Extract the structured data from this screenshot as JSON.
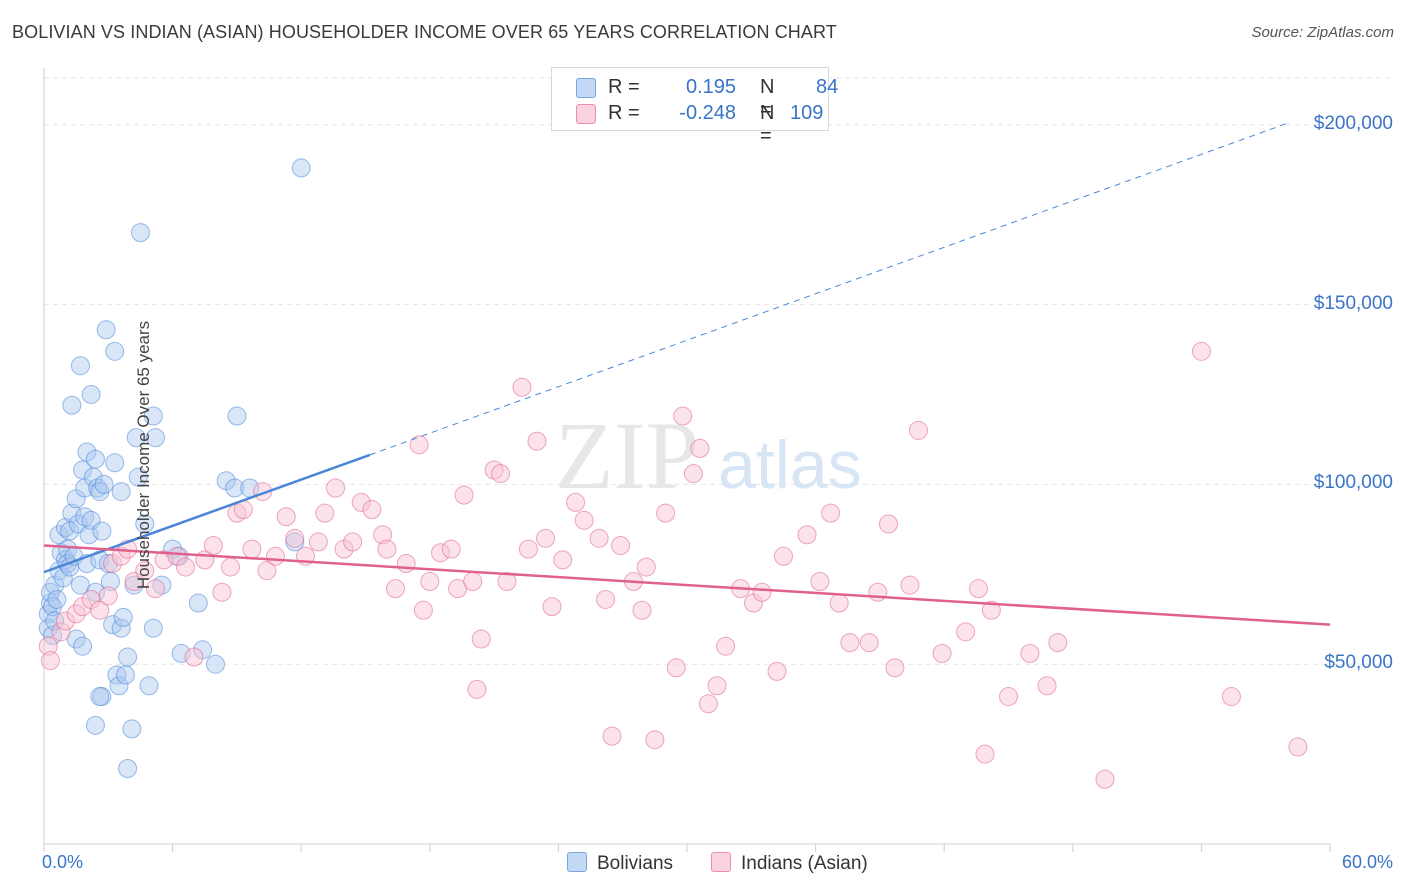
{
  "title": "BOLIVIAN VS INDIAN (ASIAN) HOUSEHOLDER INCOME OVER 65 YEARS CORRELATION CHART",
  "source": "Source: ZipAtlas.com",
  "watermark": {
    "zip": "ZIP",
    "atlas": "atlas"
  },
  "legend": {
    "r_label": "R =",
    "n_label": "N =",
    "entries": [
      {
        "name": "Bolivians",
        "r": "0.195",
        "n": "84",
        "color": "#a8c8f0"
      },
      {
        "name": "Indians (Asian)",
        "r": "-0.248",
        "n": "109",
        "color": "#f8c0d2"
      }
    ]
  },
  "chart_data": {
    "type": "scatter",
    "xlabel": "",
    "ylabel": "Householder Income Over 65 years",
    "x_unit": "%",
    "xlim": [
      0,
      60
    ],
    "ylim": [
      0,
      213000
    ],
    "x_tick_labels": [
      "0.0%",
      "60.0%"
    ],
    "y_ticks": [
      50000,
      100000,
      150000,
      200000
    ],
    "y_tick_labels": [
      "$50,000",
      "$100,000",
      "$150,000",
      "$200,000"
    ],
    "grid": true,
    "series": [
      {
        "name": "Bolivians",
        "color": "#4a86d8",
        "fill": "#a8c8f0",
        "trend": {
          "x": [
            0,
            15.2
          ],
          "y": [
            75600,
            108200
          ],
          "dashed_extension_to": [
            58,
            200400
          ]
        },
        "points": [
          [
            0.2,
            64000
          ],
          [
            0.2,
            60000
          ],
          [
            0.3,
            67000
          ],
          [
            0.3,
            70000
          ],
          [
            0.4,
            66000
          ],
          [
            0.4,
            58000
          ],
          [
            0.5,
            72000
          ],
          [
            0.5,
            62000
          ],
          [
            0.6,
            68000
          ],
          [
            0.7,
            86000
          ],
          [
            0.7,
            76000
          ],
          [
            0.8,
            81000
          ],
          [
            0.9,
            74000
          ],
          [
            1.0,
            88000
          ],
          [
            1.0,
            79000
          ],
          [
            1.1,
            82000
          ],
          [
            1.1,
            78000
          ],
          [
            1.2,
            87000
          ],
          [
            1.2,
            77000
          ],
          [
            1.3,
            122000
          ],
          [
            1.3,
            92000
          ],
          [
            1.4,
            80000
          ],
          [
            1.5,
            96000
          ],
          [
            1.5,
            57000
          ],
          [
            1.6,
            89000
          ],
          [
            1.7,
            133000
          ],
          [
            1.7,
            72000
          ],
          [
            1.8,
            104000
          ],
          [
            1.9,
            99000
          ],
          [
            1.9,
            91000
          ],
          [
            2.0,
            109000
          ],
          [
            2.0,
            78000
          ],
          [
            2.1,
            86000
          ],
          [
            2.2,
            125000
          ],
          [
            2.2,
            90000
          ],
          [
            2.3,
            102000
          ],
          [
            2.4,
            107000
          ],
          [
            2.4,
            70000
          ],
          [
            2.5,
            99000
          ],
          [
            2.6,
            98000
          ],
          [
            2.6,
            79000
          ],
          [
            2.7,
            87000
          ],
          [
            2.8,
            100000
          ],
          [
            2.9,
            143000
          ],
          [
            3.0,
            78000
          ],
          [
            3.1,
            73000
          ],
          [
            3.2,
            61000
          ],
          [
            3.3,
            137000
          ],
          [
            3.3,
            106000
          ],
          [
            3.4,
            47000
          ],
          [
            3.5,
            44000
          ],
          [
            3.6,
            60000
          ],
          [
            3.6,
            98000
          ],
          [
            3.7,
            63000
          ],
          [
            3.8,
            47000
          ],
          [
            3.9,
            52000
          ],
          [
            4.1,
            32000
          ],
          [
            4.2,
            72000
          ],
          [
            4.3,
            113000
          ],
          [
            4.4,
            102000
          ],
          [
            4.5,
            170000
          ],
          [
            4.7,
            89000
          ],
          [
            4.9,
            44000
          ],
          [
            5.1,
            119000
          ],
          [
            5.1,
            60000
          ],
          [
            5.2,
            113000
          ],
          [
            5.5,
            72000
          ],
          [
            6.0,
            82000
          ],
          [
            6.3,
            80000
          ],
          [
            6.4,
            53000
          ],
          [
            7.2,
            67000
          ],
          [
            7.4,
            54000
          ],
          [
            8.0,
            50000
          ],
          [
            8.5,
            101000
          ],
          [
            8.9,
            99000
          ],
          [
            9.0,
            119000
          ],
          [
            9.6,
            99000
          ],
          [
            11.7,
            84000
          ],
          [
            12.0,
            188000
          ],
          [
            2.4,
            33000
          ],
          [
            3.9,
            21000
          ],
          [
            2.7,
            41000
          ],
          [
            2.6,
            41000
          ],
          [
            1.8,
            55000
          ]
        ]
      },
      {
        "name": "Indians (Asian)",
        "color": "#e0608e",
        "fill": "#f8c0d2",
        "trend": {
          "x": [
            0,
            60
          ],
          "y": [
            83000,
            61000
          ]
        },
        "points": [
          [
            0.2,
            55000
          ],
          [
            0.3,
            51000
          ],
          [
            0.8,
            59000
          ],
          [
            1.0,
            62000
          ],
          [
            1.5,
            64000
          ],
          [
            1.8,
            66000
          ],
          [
            2.2,
            68000
          ],
          [
            2.6,
            65000
          ],
          [
            3.0,
            69000
          ],
          [
            3.2,
            78000
          ],
          [
            3.6,
            80000
          ],
          [
            3.9,
            82000
          ],
          [
            4.2,
            73000
          ],
          [
            4.7,
            76000
          ],
          [
            5.2,
            71000
          ],
          [
            5.6,
            79000
          ],
          [
            6.2,
            80000
          ],
          [
            6.6,
            77000
          ],
          [
            7.0,
            52000
          ],
          [
            7.5,
            79000
          ],
          [
            7.9,
            83000
          ],
          [
            8.3,
            70000
          ],
          [
            8.7,
            77000
          ],
          [
            9.0,
            92000
          ],
          [
            9.3,
            93000
          ],
          [
            9.7,
            82000
          ],
          [
            10.2,
            98000
          ],
          [
            10.4,
            76000
          ],
          [
            10.8,
            80000
          ],
          [
            11.3,
            91000
          ],
          [
            11.7,
            85000
          ],
          [
            12.2,
            80000
          ],
          [
            12.8,
            84000
          ],
          [
            13.1,
            92000
          ],
          [
            13.6,
            99000
          ],
          [
            14.0,
            82000
          ],
          [
            14.4,
            84000
          ],
          [
            14.8,
            95000
          ],
          [
            15.3,
            93000
          ],
          [
            15.8,
            86000
          ],
          [
            16.0,
            82000
          ],
          [
            16.4,
            71000
          ],
          [
            16.9,
            78000
          ],
          [
            17.5,
            111000
          ],
          [
            17.7,
            65000
          ],
          [
            18.0,
            73000
          ],
          [
            18.5,
            81000
          ],
          [
            19.0,
            82000
          ],
          [
            19.3,
            71000
          ],
          [
            19.6,
            97000
          ],
          [
            20.0,
            73000
          ],
          [
            20.2,
            43000
          ],
          [
            20.4,
            57000
          ],
          [
            21.0,
            104000
          ],
          [
            21.3,
            103000
          ],
          [
            21.6,
            73000
          ],
          [
            22.3,
            127000
          ],
          [
            22.6,
            82000
          ],
          [
            23.0,
            112000
          ],
          [
            23.4,
            85000
          ],
          [
            23.7,
            66000
          ],
          [
            24.2,
            79000
          ],
          [
            24.8,
            95000
          ],
          [
            25.2,
            90000
          ],
          [
            25.9,
            85000
          ],
          [
            26.2,
            68000
          ],
          [
            26.5,
            30000
          ],
          [
            26.9,
            83000
          ],
          [
            27.5,
            73000
          ],
          [
            27.9,
            65000
          ],
          [
            28.1,
            77000
          ],
          [
            28.5,
            29000
          ],
          [
            29.0,
            92000
          ],
          [
            29.5,
            49000
          ],
          [
            29.8,
            119000
          ],
          [
            30.3,
            103000
          ],
          [
            30.6,
            110000
          ],
          [
            31.0,
            39000
          ],
          [
            31.4,
            44000
          ],
          [
            31.8,
            55000
          ],
          [
            32.5,
            71000
          ],
          [
            33.1,
            67000
          ],
          [
            33.5,
            70000
          ],
          [
            34.2,
            48000
          ],
          [
            34.5,
            80000
          ],
          [
            35.6,
            86000
          ],
          [
            36.2,
            73000
          ],
          [
            36.7,
            92000
          ],
          [
            37.1,
            67000
          ],
          [
            37.6,
            56000
          ],
          [
            38.5,
            56000
          ],
          [
            38.9,
            70000
          ],
          [
            39.4,
            89000
          ],
          [
            39.7,
            49000
          ],
          [
            40.4,
            72000
          ],
          [
            40.8,
            115000
          ],
          [
            41.9,
            53000
          ],
          [
            43.0,
            59000
          ],
          [
            43.6,
            71000
          ],
          [
            43.9,
            25000
          ],
          [
            44.2,
            65000
          ],
          [
            45.0,
            41000
          ],
          [
            46.0,
            53000
          ],
          [
            46.8,
            44000
          ],
          [
            47.3,
            56000
          ],
          [
            49.5,
            18000
          ],
          [
            54.0,
            137000
          ],
          [
            55.4,
            41000
          ],
          [
            58.5,
            27000
          ]
        ]
      }
    ]
  }
}
